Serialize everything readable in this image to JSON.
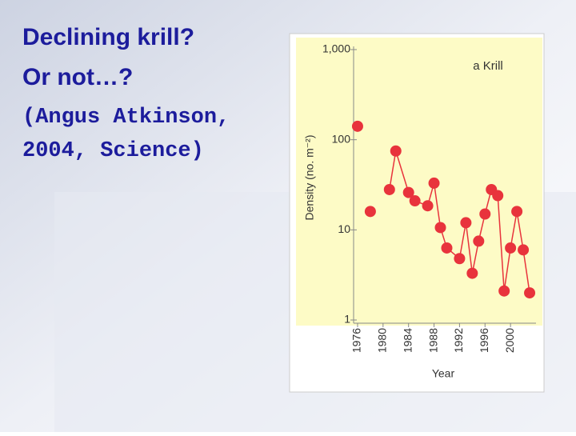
{
  "slide": {
    "heading": [
      "Declining krill?",
      "Or not…?"
    ],
    "citation": [
      "(Angus Atkinson,",
      "2004, Science)"
    ]
  },
  "chart_data": {
    "type": "line",
    "annotation": "a Krill",
    "ylabel": "Density (no. m⁻²)",
    "xlabel": "Year",
    "x": [
      1976,
      1977,
      1978,
      1980,
      1981,
      1982,
      1984,
      1985,
      1987,
      1988,
      1989,
      1990,
      1992,
      1993,
      1994,
      1995,
      1996,
      1997,
      1998,
      1999,
      2000,
      2001,
      2002,
      2003
    ],
    "series": [
      {
        "name": "Krill",
        "color": "#e8333c",
        "values": [
          141,
          null,
          16,
          null,
          28,
          75,
          26,
          21,
          18.5,
          33,
          10.6,
          6.3,
          4.8,
          12,
          3.3,
          7.5,
          15,
          28,
          24,
          2.1,
          6.3,
          16,
          6,
          2
        ]
      }
    ],
    "xlim": [
      1975,
      2004
    ],
    "xticks": [
      1976,
      1980,
      1984,
      1988,
      1992,
      1996,
      2000
    ],
    "ylim": [
      1,
      1000
    ],
    "yticks": [
      1,
      10,
      100,
      {
        "value": 1000,
        "label": "1,000"
      }
    ],
    "log_y": true
  }
}
